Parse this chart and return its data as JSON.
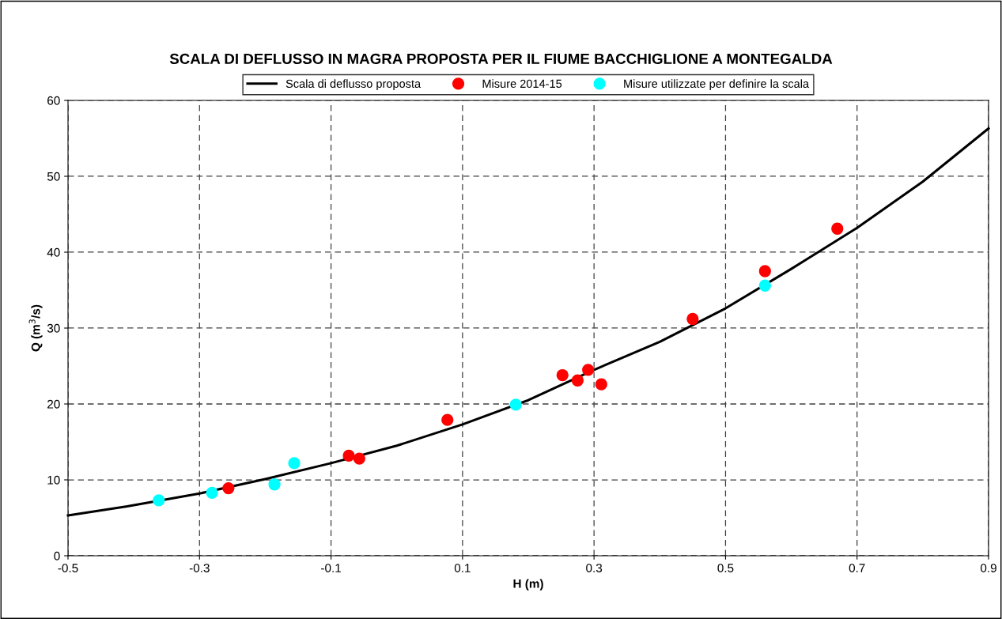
{
  "chart_data": {
    "type": "scatter",
    "title": "SCALA DI DEFLUSSO IN MAGRA PROPOSTA PER IL FIUME BACCHIGLIONE A MONTEGALDA",
    "xlabel": "H (m)",
    "ylabel": "Q (m$^{3}$/s)",
    "xlim": [
      -0.5,
      0.9
    ],
    "xticks": [
      -0.5,
      -0.3,
      -0.1,
      0.1,
      0.3,
      0.5,
      0.7,
      0.9
    ],
    "ylim": [
      0,
      60
    ],
    "yticks": [
      0,
      10,
      20,
      30,
      40,
      50,
      60
    ],
    "grid": true,
    "legend": "top",
    "marker": "circle",
    "series": [
      {
        "name": "Scala di deflusso proposta",
        "type": "line",
        "color": "#000000",
        "line_style": "solid",
        "marker": "none",
        "x": [
          -0.5,
          -0.41,
          -0.3,
          -0.2,
          -0.1,
          0.0,
          0.1,
          0.2,
          0.3,
          0.4,
          0.5,
          0.6,
          0.7,
          0.8,
          0.9
        ],
        "values": [
          5.3,
          6.5,
          8.2,
          10.1,
          12.2,
          14.5,
          17.3,
          20.5,
          24.5,
          28.2,
          32.6,
          37.8,
          43.2,
          49.3,
          56.3
        ]
      },
      {
        "name": "Misure 2014-15",
        "color": "#ff0000",
        "x": [
          -0.256,
          -0.073,
          -0.057,
          0.077,
          0.252,
          0.275,
          0.291,
          0.311,
          0.45,
          0.56,
          0.67
        ],
        "values": [
          8.9,
          13.2,
          12.8,
          17.9,
          23.8,
          23.1,
          24.5,
          22.6,
          31.2,
          37.5,
          43.1
        ]
      },
      {
        "name": "Misure utilizzate per definire la scala",
        "color": "#00ffff",
        "x": [
          -0.362,
          -0.281,
          -0.186,
          -0.156,
          0.181,
          0.56
        ],
        "values": [
          7.3,
          8.3,
          9.4,
          12.2,
          19.9,
          35.6
        ]
      }
    ]
  }
}
